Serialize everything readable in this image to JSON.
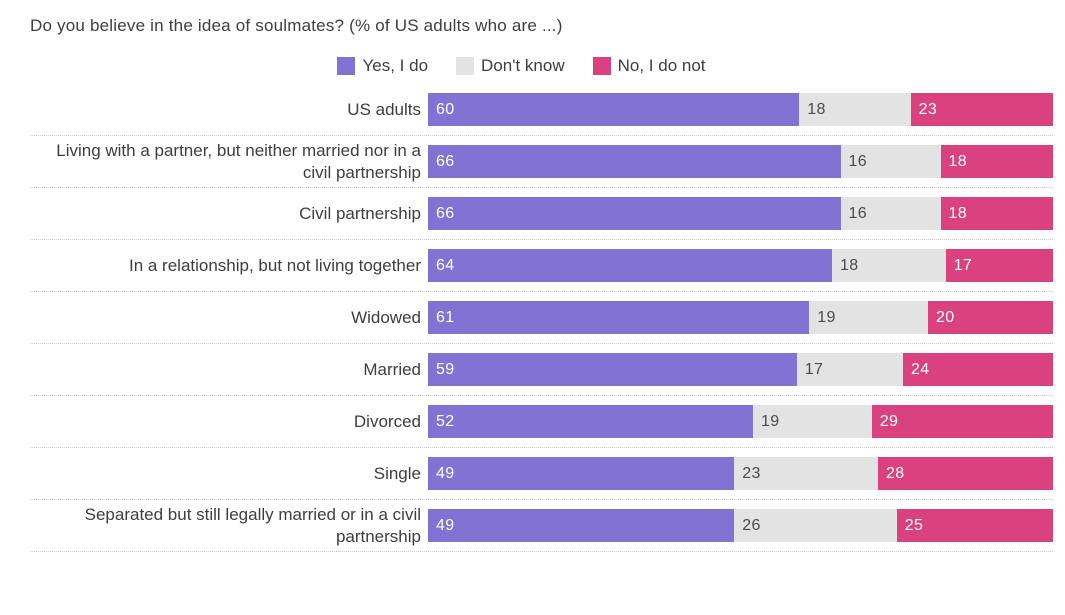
{
  "title": "Do you believe in the idea of soulmates? (% of US adults who are ...)",
  "colors": {
    "yes": "#8172d4",
    "dont_know": "#e3e3e3",
    "no": "#d9417f"
  },
  "legend": [
    {
      "label": "Yes, I do",
      "color": "#8172d4"
    },
    {
      "label": "Don't know",
      "color": "#e3e3e3"
    },
    {
      "label": "No, I do not",
      "color": "#d9417f"
    }
  ],
  "chart_data": {
    "type": "bar",
    "orientation": "horizontal",
    "stacked": true,
    "normalized_to_full_width": true,
    "title": "Do you believe in the idea of soulmates? (% of US adults who are ...)",
    "xlabel": "",
    "ylabel": "",
    "legend_position": "top-center",
    "grid": "dotted-row-separators",
    "categories": [
      "US adults",
      "Living with a partner, but neither married nor in a civil partnership",
      "Civil partnership",
      "In a relationship, but not living together",
      "Widowed",
      "Married",
      "Divorced",
      "Single",
      "Separated but still legally married or in a civil partnership"
    ],
    "series": [
      {
        "name": "Yes, I do",
        "color": "#8172d4",
        "values": [
          60,
          66,
          66,
          64,
          61,
          59,
          52,
          49,
          49
        ]
      },
      {
        "name": "Don't know",
        "color": "#e3e3e3",
        "values": [
          18,
          16,
          16,
          18,
          19,
          17,
          19,
          23,
          26
        ]
      },
      {
        "name": "No, I do not",
        "color": "#d9417f",
        "values": [
          23,
          18,
          18,
          17,
          20,
          24,
          29,
          28,
          25
        ]
      }
    ]
  }
}
